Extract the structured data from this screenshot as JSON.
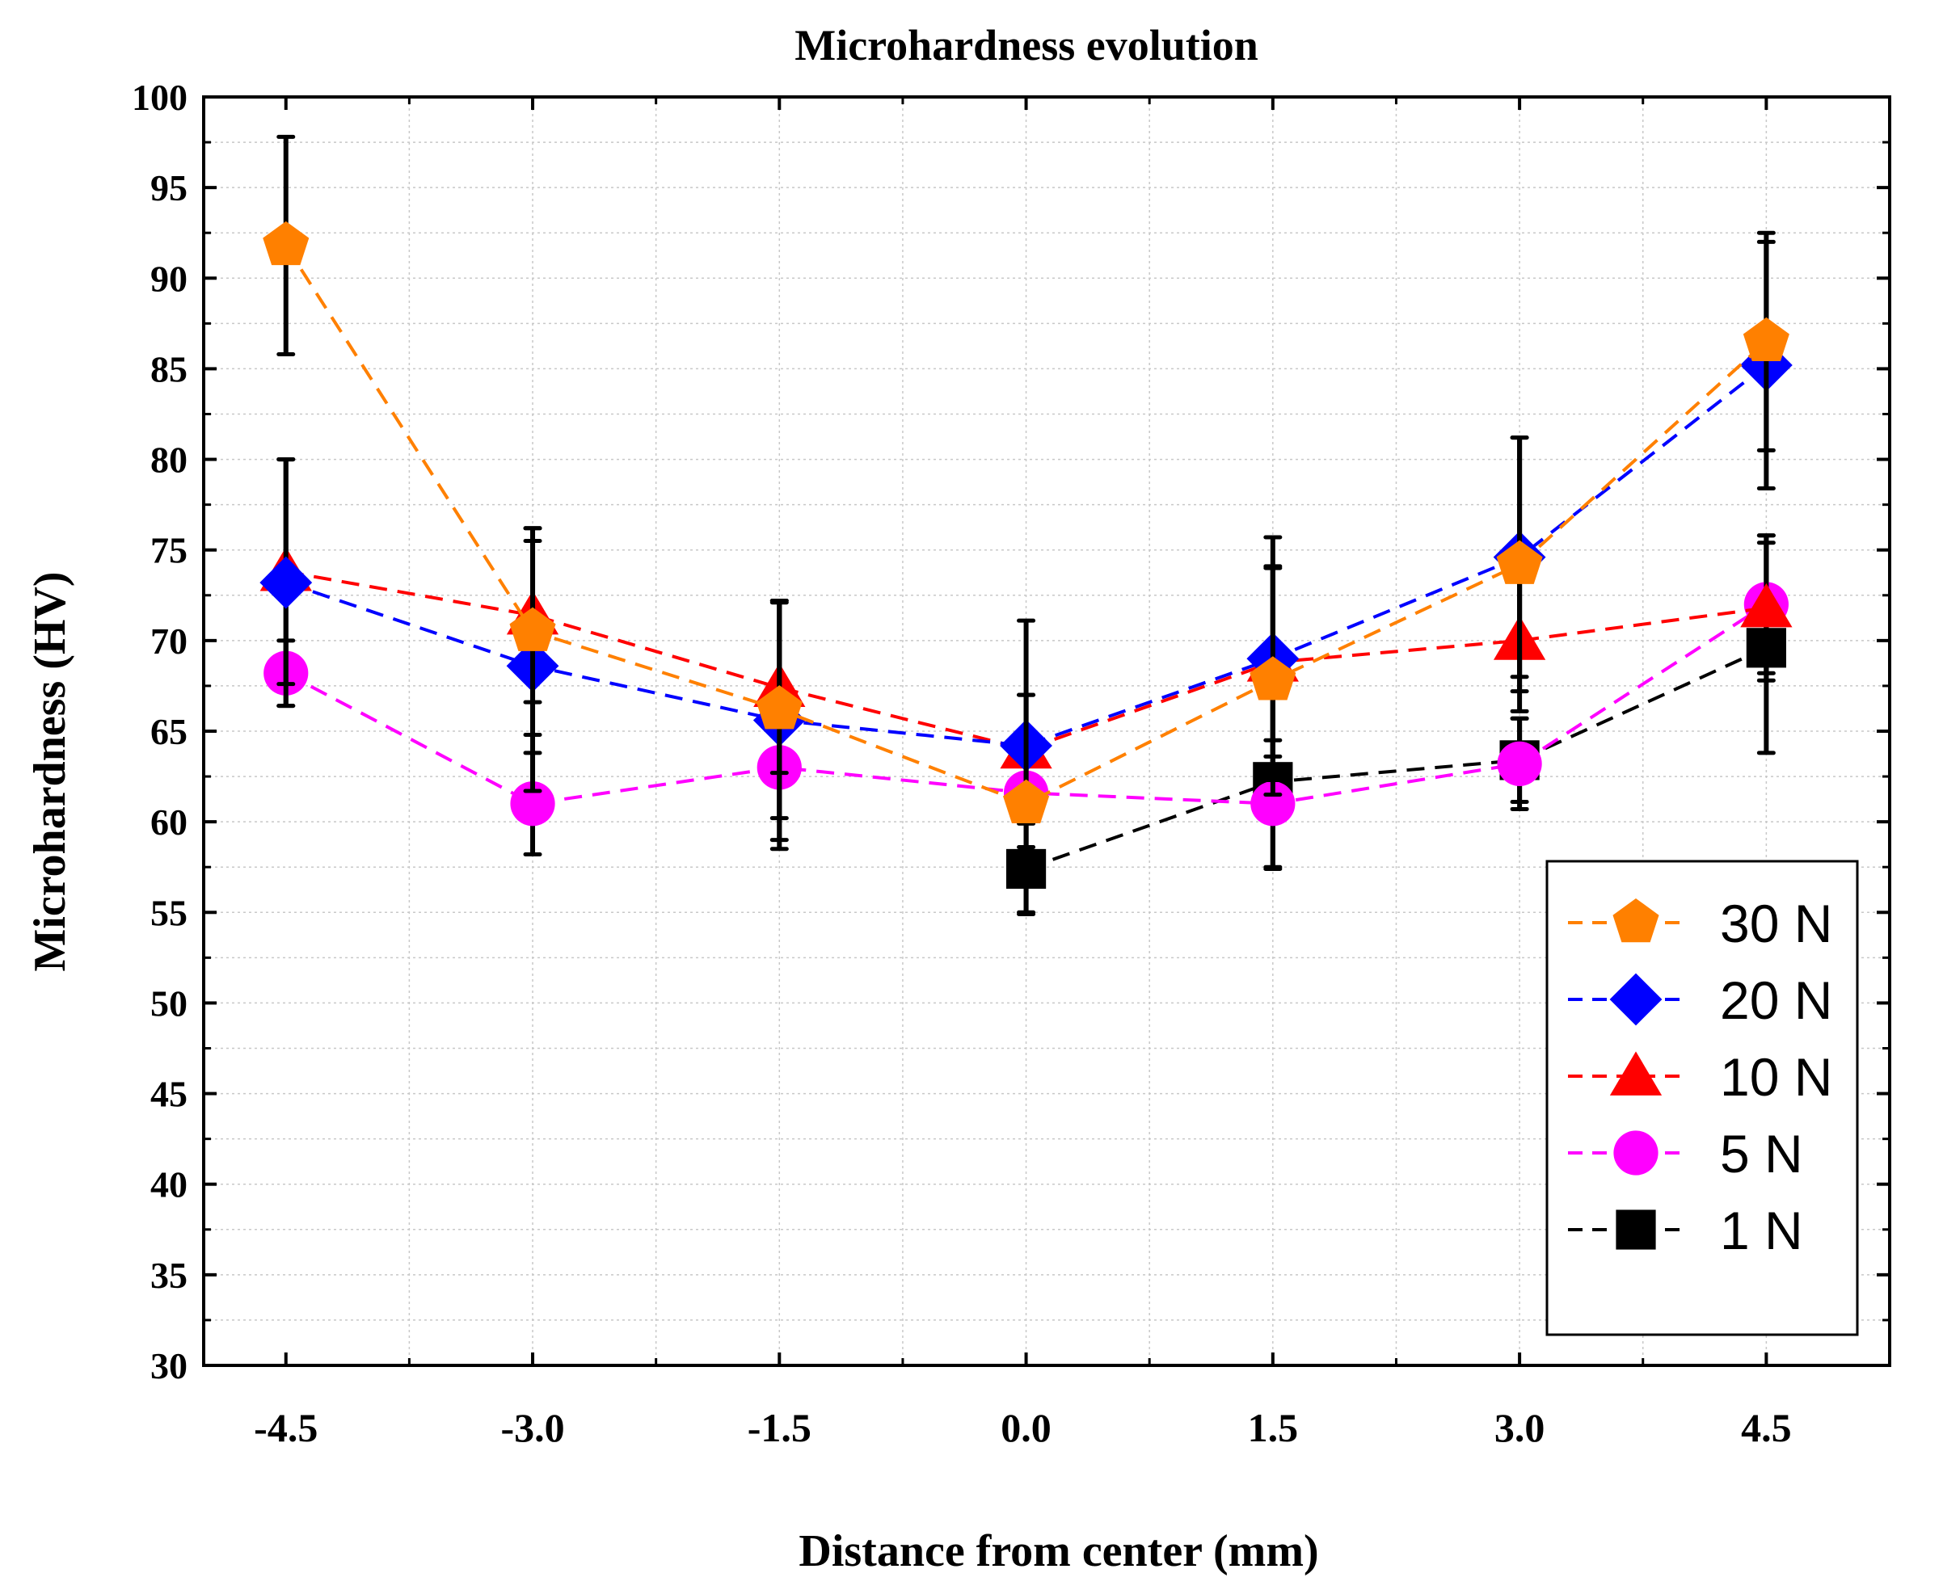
{
  "chart_data": {
    "type": "line",
    "title": "Microhardness evolution",
    "xlabel": "Distance from center (mm)",
    "ylabel": "Microhardness (HV)",
    "x": [
      -4.5,
      -3.0,
      -1.5,
      0.0,
      1.5,
      3.0,
      4.5
    ],
    "x_tick_labels": [
      "-4.5",
      "-3.0",
      "-1.5",
      "0.0",
      "1.5",
      "3.0",
      "4.5"
    ],
    "y_tick_labels": [
      "30",
      "35",
      "40",
      "45",
      "50",
      "55",
      "60",
      "65",
      "70",
      "75",
      "80",
      "85",
      "90",
      "95",
      "100"
    ],
    "xlim": [
      -5.0,
      5.25
    ],
    "ylim": [
      30,
      100
    ],
    "grid": true,
    "legend_position": "bottom-right",
    "series": [
      {
        "name": "30 N",
        "color": "#ff8000",
        "marker": "pentagon",
        "values": [
          91.8,
          70.5,
          66.2,
          61.0,
          67.8,
          74.2,
          86.5
        ],
        "errors": [
          6.0,
          5.7,
          6.0,
          6.0,
          6.3,
          7.0,
          6.0
        ]
      },
      {
        "name": "20 N",
        "color": "#0000ff",
        "marker": "diamond",
        "values": [
          73.2,
          68.6,
          65.6,
          64.2,
          69.0,
          74.6,
          85.2
        ],
        "errors": [
          6.8,
          6.9,
          6.6,
          6.9,
          6.7,
          6.6,
          6.8
        ]
      },
      {
        "name": "10 N",
        "color": "#ff0000",
        "marker": "triangle",
        "values": [
          73.8,
          71.4,
          67.4,
          64.0,
          68.8,
          70.0,
          71.8
        ],
        "errors": [
          6.2,
          4.8,
          4.7,
          3.0,
          5.2,
          3.9,
          4.0
        ]
      },
      {
        "name": "5 N",
        "color": "#ff00ff",
        "marker": "circle",
        "values": [
          68.2,
          61.0,
          63.0,
          61.6,
          61.0,
          63.2,
          72.0
        ],
        "errors": [
          1.8,
          2.8,
          4.5,
          3.0,
          3.5,
          2.5,
          3.8
        ]
      },
      {
        "name": "1 N",
        "color": "#000000",
        "marker": "square",
        "values": [
          null,
          null,
          null,
          57.4,
          62.2,
          63.4,
          69.6
        ],
        "errors": [
          null,
          null,
          null,
          2.5,
          4.8,
          2.3,
          5.8
        ]
      }
    ]
  }
}
